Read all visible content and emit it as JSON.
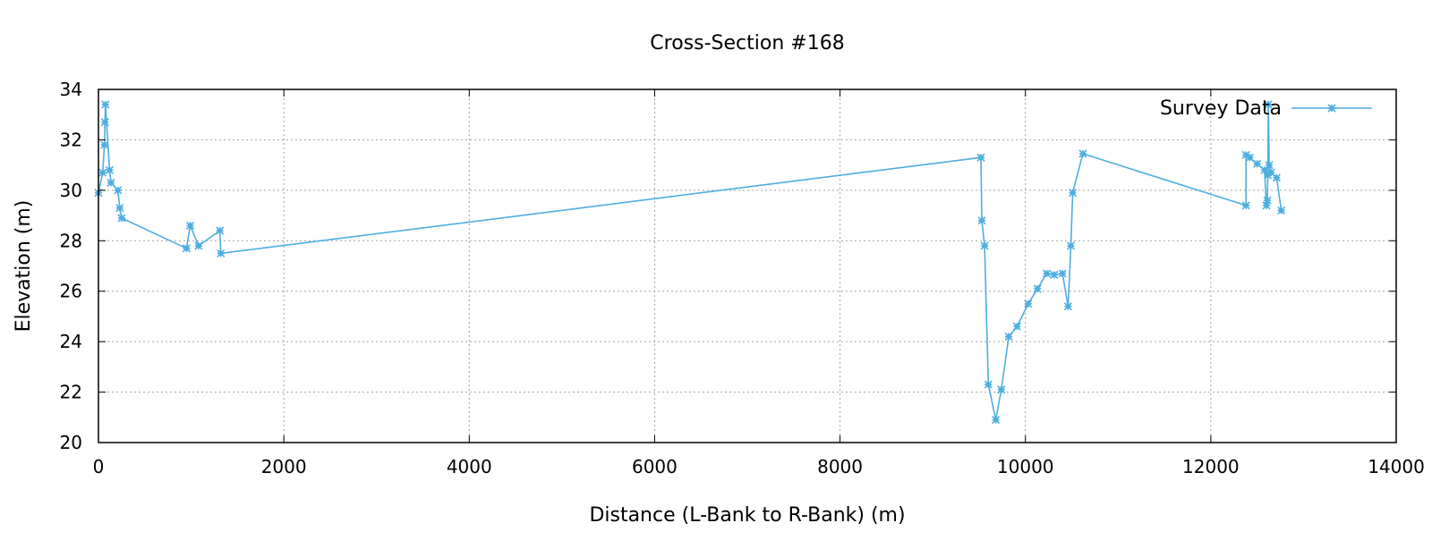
{
  "chart_data": {
    "type": "line",
    "title": "Cross-Section #168",
    "xlabel": "Distance (L-Bank to R-Bank) (m)",
    "ylabel": "Elevation (m)",
    "xlim": [
      0,
      14000
    ],
    "ylim": [
      20,
      34
    ],
    "xticks": [
      "0",
      "2000",
      "4000",
      "6000",
      "8000",
      "10000",
      "12000",
      "14000"
    ],
    "yticks": [
      "20",
      "22",
      "24",
      "26",
      "28",
      "30",
      "32",
      "34"
    ],
    "grid": true,
    "legend_position": "top-right",
    "colors": {
      "series": "#4DAEE0",
      "grid": "#A0A0A0",
      "frame": "#000000"
    },
    "series": [
      {
        "name": "Survey Data",
        "marker": "asterisk",
        "x": [
          0,
          45,
          65,
          70,
          75,
          120,
          135,
          210,
          230,
          250,
          950,
          990,
          1080,
          1310,
          1320,
          9520,
          9530,
          9560,
          9600,
          9680,
          9740,
          9820,
          9910,
          10030,
          10130,
          10230,
          10310,
          10400,
          10460,
          10490,
          10510,
          10620,
          12380,
          12380,
          12420,
          12500,
          12580,
          12600,
          12610,
          12615,
          12620,
          12630,
          12650,
          12710,
          12760
        ],
        "y": [
          29.9,
          30.7,
          31.8,
          32.7,
          33.4,
          30.8,
          30.3,
          30.0,
          29.3,
          28.9,
          27.7,
          28.6,
          27.8,
          28.4,
          27.5,
          31.3,
          28.8,
          27.8,
          22.3,
          20.9,
          22.1,
          24.2,
          24.6,
          25.5,
          26.1,
          26.7,
          26.65,
          26.7,
          25.4,
          27.8,
          29.9,
          31.45,
          29.4,
          31.4,
          31.3,
          31.05,
          30.8,
          29.4,
          29.6,
          30.6,
          33.4,
          31.0,
          30.7,
          30.5,
          29.2
        ]
      }
    ]
  }
}
